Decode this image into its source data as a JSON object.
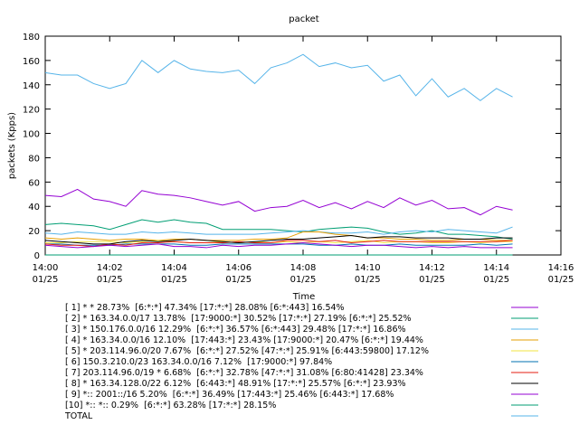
{
  "chart_data": {
    "type": "line",
    "title": "packet",
    "x_label": "Time",
    "y_label": "packets (Kpps)",
    "x": [
      0,
      0.5,
      1,
      1.5,
      2,
      2.5,
      3,
      3.5,
      4,
      4.5,
      5,
      5.5,
      6,
      6.5,
      7,
      7.5,
      8,
      8.5,
      9,
      9.5,
      10,
      10.5,
      11,
      11.5,
      12,
      12.5,
      13,
      13.5,
      14,
      14.5
    ],
    "xlim": [
      0,
      16
    ],
    "xticks": [
      {
        "value": 0,
        "label": "14:00\n01/25"
      },
      {
        "value": 2,
        "label": "14:02\n01/25"
      },
      {
        "value": 4,
        "label": "14:04\n01/25"
      },
      {
        "value": 6,
        "label": "14:06\n01/25"
      },
      {
        "value": 8,
        "label": "14:08\n01/25"
      },
      {
        "value": 10,
        "label": "14:10\n01/25"
      },
      {
        "value": 12,
        "label": "14:12\n01/25"
      },
      {
        "value": 14,
        "label": "14:14\n01/25"
      },
      {
        "value": 16,
        "label": "14:16\n01/25"
      }
    ],
    "ylim": [
      0,
      180
    ],
    "yticks": [
      0,
      20,
      40,
      60,
      80,
      100,
      120,
      140,
      160,
      180
    ],
    "grid": false,
    "series": [
      {
        "name": "[ 1] * * 28.73%  [6:*:*] 47.34% [17:*:*] 28.08% [6:*:443] 16.54%",
        "color": "#9400d3",
        "values": [
          49,
          48,
          54,
          46,
          44,
          40,
          53,
          50,
          49,
          47,
          44,
          41,
          44,
          36,
          39,
          40,
          45,
          39,
          43,
          38,
          44,
          39,
          47,
          41,
          45,
          38,
          39,
          33,
          40,
          37
        ]
      },
      {
        "name": "[ 2] * 163.34.0.0/17 13.78%  [17:9000:*] 30.52% [17:*:*] 27.19% [6:*:*] 25.52%",
        "color": "#009e73",
        "values": [
          25,
          26,
          25,
          24,
          21,
          25,
          29,
          27,
          29,
          27,
          26,
          21,
          21,
          21,
          21,
          20,
          19,
          21,
          22,
          23,
          22,
          19,
          17,
          18,
          20,
          17,
          17,
          16,
          15,
          13
        ]
      },
      {
        "name": "[ 3] * 150.176.0.0/16 12.29%  [6:*:*] 36.57% [6:*:443] 29.48% [17:*:*] 16.86%",
        "color": "#56b4e9",
        "values": [
          18,
          17,
          19,
          18,
          17,
          17,
          19,
          18,
          19,
          18,
          17,
          17,
          17,
          17,
          18,
          19,
          20,
          19,
          18,
          18,
          19,
          17,
          19,
          20,
          19,
          21,
          20,
          19,
          18,
          23
        ]
      },
      {
        "name": "[ 4] * 163.34.0.0/16 12.10%  [17:443:*] 23.43% [17:9000:*] 20.47% [6:*:*] 19.44%",
        "color": "#e69f00",
        "values": [
          14,
          13,
          14,
          13,
          12,
          13,
          13,
          12,
          13,
          13,
          12,
          12,
          12,
          13,
          13,
          14,
          19,
          19,
          17,
          16,
          14,
          14,
          13,
          13,
          12,
          12,
          13,
          13,
          12,
          12
        ]
      },
      {
        "name": "[ 5] * 203.114.96.0/20 7.67%  [6:*:*] 27.52% [47:*:*] 25.91% [6:443:59800] 17.12%",
        "color": "#f0e442",
        "values": [
          10,
          10,
          11,
          11,
          11,
          10,
          11,
          12,
          11,
          10,
          10,
          11,
          10,
          11,
          10,
          11,
          10,
          11,
          10,
          11,
          12,
          10,
          11,
          11,
          10,
          10,
          11,
          10,
          11,
          11
        ]
      },
      {
        "name": "[ 6] 150.3.210.0/23 163.34.0.0/16 7.12%  [17:9000:*] 97.84%",
        "color": "#0072b2",
        "values": [
          9,
          9,
          8,
          8,
          8,
          9,
          9,
          9,
          9,
          8,
          8,
          9,
          9,
          9,
          9,
          9,
          9,
          8,
          8,
          9,
          8,
          8,
          9,
          8,
          8,
          8,
          8,
          9,
          8,
          9
        ]
      },
      {
        "name": "[ 7] 203.114.96.0/19 * 6.68%  [6:*:*] 32.78% [47:*:*] 31.08% [6:80:41428] 23.34%",
        "color": "#e51e10",
        "values": [
          9,
          8,
          8,
          7,
          9,
          8,
          10,
          10,
          11,
          10,
          10,
          10,
          11,
          10,
          10,
          12,
          12,
          11,
          12,
          10,
          11,
          12,
          11,
          11,
          11,
          11,
          11,
          11,
          11,
          12
        ]
      },
      {
        "name": "[ 8] * 163.34.128.0/22 6.12%  [6:443:*] 48.91% [17:*:*] 25.57% [6:*:*] 23.93%",
        "color": "#000000",
        "values": [
          12,
          11,
          10,
          9,
          9,
          11,
          12,
          11,
          12,
          13,
          12,
          11,
          10,
          11,
          12,
          13,
          13,
          14,
          15,
          16,
          14,
          15,
          15,
          14,
          14,
          14,
          13,
          13,
          14,
          14
        ]
      },
      {
        "name": "[ 9] *:: 2001::/16 5.20%  [6:*:*] 36.49% [17:443:*] 25.46% [6:443:*] 17.68%",
        "color": "#9400d3",
        "values": [
          8,
          7,
          6,
          7,
          8,
          7,
          8,
          9,
          7,
          7,
          6,
          8,
          7,
          8,
          8,
          9,
          10,
          9,
          8,
          7,
          8,
          8,
          7,
          6,
          7,
          6,
          7,
          6,
          6,
          6
        ]
      },
      {
        "name": "[10] *:: *:: 0.29%  [6:*:*] 63.28% [17:*:*] 28.15%",
        "color": "#009e73",
        "values": [
          0,
          0,
          0,
          0,
          0,
          0,
          0,
          0,
          0,
          0,
          0,
          0,
          0,
          0,
          0,
          0,
          0,
          0,
          0,
          0,
          0,
          0,
          0,
          0,
          0,
          0,
          0,
          0,
          0,
          0
        ]
      },
      {
        "name": "TOTAL",
        "color": "#56b4e9",
        "values": [
          150,
          148,
          148,
          141,
          137,
          141,
          160,
          150,
          160,
          153,
          151,
          150,
          152,
          141,
          154,
          158,
          165,
          155,
          158,
          154,
          156,
          143,
          148,
          131,
          145,
          130,
          137,
          127,
          137,
          130
        ]
      }
    ]
  }
}
